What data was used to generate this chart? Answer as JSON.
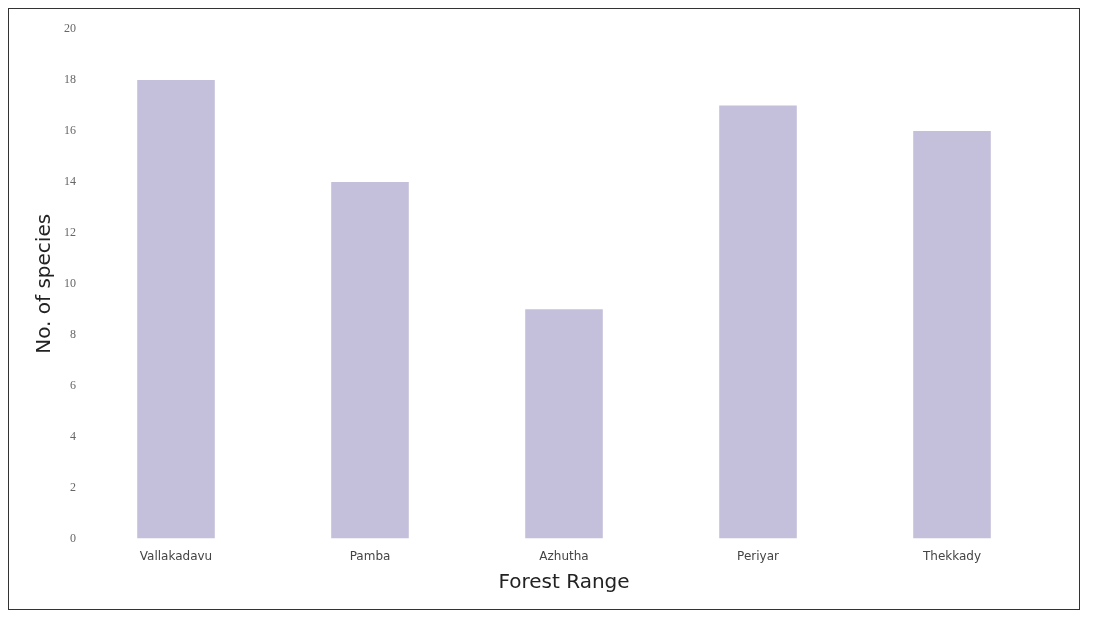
{
  "chart_data": {
    "type": "bar",
    "xlabel": "Forest Range",
    "ylabel": "No. of species",
    "categories": [
      "Vallakadavu",
      "Pamba",
      "Azhutha",
      "Periyar",
      "Thekkady"
    ],
    "values": [
      18,
      14,
      9,
      17,
      16
    ],
    "color": "#c4c0dc",
    "ylim": [
      0,
      20
    ],
    "yticks": [
      0,
      2,
      4,
      6,
      8,
      10,
      12,
      14,
      16,
      18,
      20
    ],
    "grid": false,
    "legend": false
  }
}
